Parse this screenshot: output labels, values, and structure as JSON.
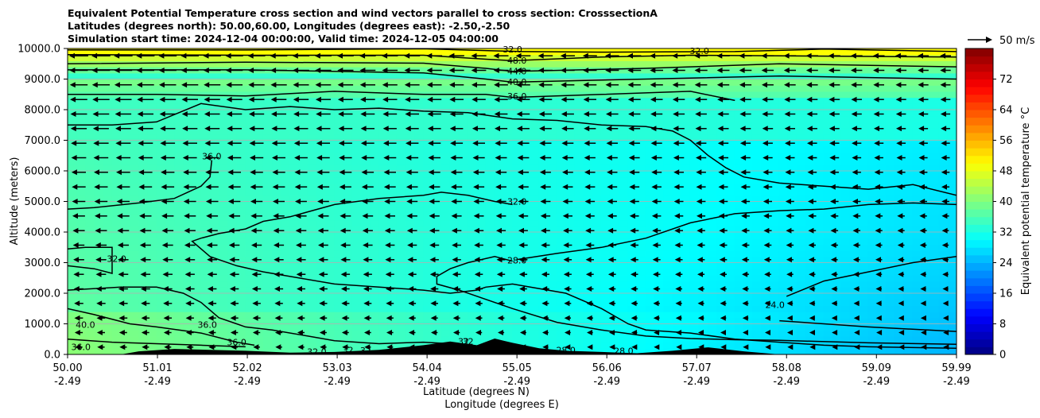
{
  "title_lines": [
    "Equivalent Potential Temperature cross section and wind vectors parallel to cross section: CrosssectionA",
    "Latitudes (degrees north): 50.00,60.00, Longitudes (degrees east): -2.50,-2.50",
    "Simulation start time: 2024-12-04 00:00:00, Valid time: 2024-12-05 04:00:00"
  ],
  "chart_data": {
    "type": "heatmap",
    "subtype": "cross-section filled contour with wind vectors",
    "xlabel": "Latitude (degrees N)",
    "xlabel2": "Longitude (degrees E)",
    "ylabel": "Altitude (meters)",
    "xlim": [
      50.0,
      59.99
    ],
    "ylim": [
      0,
      10000
    ],
    "x_ticks": [
      {
        "lat": "50.00",
        "lon": "-2.49",
        "value": 50.0
      },
      {
        "lat": "51.01",
        "lon": "-2.49",
        "value": 51.01
      },
      {
        "lat": "52.02",
        "lon": "-2.49",
        "value": 52.02
      },
      {
        "lat": "53.03",
        "lon": "-2.49",
        "value": 53.03
      },
      {
        "lat": "54.04",
        "lon": "-2.49",
        "value": 54.04
      },
      {
        "lat": "55.05",
        "lon": "-2.49",
        "value": 55.05
      },
      {
        "lat": "56.06",
        "lon": "-2.49",
        "value": 56.06
      },
      {
        "lat": "57.07",
        "lon": "-2.49",
        "value": 57.07
      },
      {
        "lat": "58.08",
        "lon": "-2.49",
        "value": 58.08
      },
      {
        "lat": "59.09",
        "lon": "-2.49",
        "value": 59.09
      },
      {
        "lat": "59.99",
        "lon": "-2.49",
        "value": 59.99
      }
    ],
    "y_ticks": [
      "0.0",
      "1000.0",
      "2000.0",
      "3000.0",
      "4000.0",
      "5000.0",
      "6000.0",
      "7000.0",
      "8000.0",
      "9000.0",
      "10000.0"
    ],
    "y_tick_values": [
      0,
      1000,
      2000,
      3000,
      4000,
      5000,
      6000,
      7000,
      8000,
      9000,
      10000
    ],
    "colorbar": {
      "label": "Equivalent potential temperature °C",
      "min": 0,
      "max": 80,
      "ticks": [
        "0",
        "8",
        "16",
        "24",
        "32",
        "40",
        "48",
        "56",
        "64",
        "72"
      ],
      "tick_values": [
        0,
        8,
        16,
        24,
        32,
        40,
        48,
        56,
        64,
        72
      ]
    },
    "quiver_key": {
      "label": "50 m/s",
      "value": 50
    },
    "contour_labels": [
      {
        "text": "32.0",
        "x": 55.0,
        "y": 9950
      },
      {
        "text": "48.0",
        "x": 55.05,
        "y": 9580
      },
      {
        "text": "44.0",
        "x": 55.05,
        "y": 9240
      },
      {
        "text": "40.0",
        "x": 55.05,
        "y": 8880
      },
      {
        "text": "36.0",
        "x": 55.05,
        "y": 8420
      },
      {
        "text": "32.0",
        "x": 57.1,
        "y": 9900
      },
      {
        "text": "36.0",
        "x": 51.62,
        "y": 6450
      },
      {
        "text": "32.0",
        "x": 55.05,
        "y": 4970
      },
      {
        "text": "28.0",
        "x": 55.05,
        "y": 3050
      },
      {
        "text": "32.0",
        "x": 50.55,
        "y": 3100
      },
      {
        "text": "40.0",
        "x": 50.2,
        "y": 950
      },
      {
        "text": "36.0",
        "x": 50.15,
        "y": 220
      },
      {
        "text": "36.0",
        "x": 51.57,
        "y": 950
      },
      {
        "text": "36.0",
        "x": 51.9,
        "y": 380
      },
      {
        "text": "32.0",
        "x": 52.8,
        "y": 60
      },
      {
        "text": "32",
        "x": 53.15,
        "y": 120
      },
      {
        "text": "32",
        "x": 53.35,
        "y": 110
      },
      {
        "text": "32",
        "x": 54.45,
        "y": 400
      },
      {
        "text": "32",
        "x": 54.5,
        "y": 400
      },
      {
        "text": "28.0",
        "x": 56.25,
        "y": 90
      },
      {
        "text": "28.0",
        "x": 55.6,
        "y": 120
      },
      {
        "text": "24.0",
        "x": 57.95,
        "y": 1600
      }
    ],
    "contours": [
      {
        "level": 32,
        "points": [
          [
            50.0,
            9950
          ],
          [
            52.0,
            9950
          ],
          [
            54.0,
            9990
          ],
          [
            55.1,
            9900
          ],
          [
            56.0,
            9880
          ],
          [
            57.5,
            9900
          ],
          [
            58.5,
            9980
          ],
          [
            59.99,
            9900
          ]
        ]
      },
      {
        "level": 48,
        "points": [
          [
            50.0,
            9800
          ],
          [
            52.0,
            9780
          ],
          [
            54.0,
            9780
          ],
          [
            54.7,
            9650
          ],
          [
            55.0,
            9600
          ],
          [
            56.0,
            9720
          ],
          [
            57.0,
            9780
          ],
          [
            58.5,
            9750
          ],
          [
            59.99,
            9720
          ]
        ]
      },
      {
        "level": 44,
        "points": [
          [
            50.0,
            9500
          ],
          [
            52.0,
            9550
          ],
          [
            54.0,
            9520
          ],
          [
            54.7,
            9350
          ],
          [
            55.0,
            9250
          ],
          [
            56.5,
            9350
          ],
          [
            58.0,
            9500
          ],
          [
            59.99,
            9400
          ]
        ]
      },
      {
        "level": 40,
        "points": [
          [
            50.0,
            9300
          ],
          [
            52.0,
            9300
          ],
          [
            54.0,
            9200
          ],
          [
            54.7,
            9000
          ],
          [
            55.0,
            8900
          ],
          [
            56.5,
            9000
          ],
          [
            58.0,
            9100
          ],
          [
            59.99,
            9000
          ]
        ]
      },
      {
        "level": 36,
        "points": [
          [
            50.0,
            8500
          ],
          [
            51.0,
            8500
          ],
          [
            52.0,
            8450
          ],
          [
            53.0,
            8600
          ],
          [
            54.0,
            8500
          ],
          [
            54.7,
            8500
          ],
          [
            55.0,
            8400
          ],
          [
            56.0,
            8500
          ],
          [
            57.0,
            8600
          ],
          [
            57.5,
            8300
          ]
        ]
      },
      {
        "level": 36,
        "points": [
          [
            50.0,
            7500
          ],
          [
            50.5,
            7500
          ],
          [
            51.0,
            7600
          ],
          [
            51.5,
            8200
          ],
          [
            52.0,
            8000
          ],
          [
            52.5,
            8100
          ],
          [
            53.0,
            8000
          ],
          [
            53.5,
            8050
          ],
          [
            54.0,
            7950
          ],
          [
            54.5,
            7900
          ],
          [
            55.0,
            7700
          ],
          [
            55.5,
            7650
          ],
          [
            56.0,
            7500
          ],
          [
            56.5,
            7450
          ],
          [
            56.8,
            7300
          ],
          [
            57.0,
            7000
          ],
          [
            57.2,
            6500
          ],
          [
            57.4,
            6100
          ],
          [
            57.6,
            5800
          ],
          [
            58.0,
            5600
          ],
          [
            58.5,
            5500
          ],
          [
            59.0,
            5400
          ],
          [
            59.5,
            5550
          ],
          [
            59.99,
            5200
          ]
        ]
      },
      {
        "level": 36,
        "points": [
          [
            51.62,
            6350
          ],
          [
            51.6,
            5800
          ],
          [
            51.5,
            5500
          ],
          [
            51.2,
            5100
          ],
          [
            50.8,
            4950
          ],
          [
            50.3,
            4800
          ],
          [
            50.0,
            4750
          ]
        ]
      },
      {
        "level": 32,
        "points": [
          [
            55.0,
            4900
          ],
          [
            54.8,
            5000
          ],
          [
            54.5,
            5200
          ],
          [
            54.2,
            5300
          ],
          [
            54.0,
            5200
          ],
          [
            53.5,
            5100
          ],
          [
            53.0,
            4900
          ],
          [
            52.5,
            4500
          ],
          [
            52.2,
            4350
          ],
          [
            52.0,
            4100
          ],
          [
            51.7,
            3950
          ],
          [
            51.5,
            3800
          ],
          [
            51.4,
            3700
          ],
          [
            51.6,
            3200
          ],
          [
            51.9,
            2900
          ],
          [
            52.2,
            2700
          ],
          [
            52.6,
            2500
          ],
          [
            53.0,
            2300
          ],
          [
            53.5,
            2200
          ],
          [
            54.0,
            2100
          ],
          [
            54.3,
            2000
          ],
          [
            54.6,
            2100
          ],
          [
            54.7,
            2200
          ],
          [
            55.0,
            2300
          ],
          [
            55.6,
            2000
          ],
          [
            56.0,
            1500
          ],
          [
            56.3,
            1000
          ],
          [
            56.5,
            800
          ],
          [
            57.0,
            700
          ],
          [
            57.5,
            500
          ],
          [
            58.0,
            400
          ],
          [
            58.5,
            300
          ],
          [
            59.0,
            250
          ],
          [
            59.99,
            200
          ]
        ]
      },
      {
        "level": 28,
        "points": [
          [
            55.0,
            3050
          ],
          [
            54.8,
            3200
          ],
          [
            54.5,
            3000
          ],
          [
            54.3,
            2800
          ],
          [
            54.15,
            2550
          ],
          [
            54.15,
            2300
          ],
          [
            54.4,
            2100
          ],
          [
            55.0,
            1500
          ],
          [
            55.5,
            1050
          ],
          [
            56.0,
            800
          ],
          [
            56.5,
            600
          ],
          [
            57.0,
            520
          ],
          [
            57.5,
            480
          ],
          [
            58.0,
            460
          ],
          [
            59.0,
            380
          ],
          [
            59.99,
            330
          ]
        ]
      },
      {
        "level": 28,
        "points": [
          [
            55.05,
            3100
          ],
          [
            55.5,
            3300
          ],
          [
            56.0,
            3500
          ],
          [
            56.5,
            3800
          ],
          [
            57.0,
            4300
          ],
          [
            57.5,
            4600
          ],
          [
            58.0,
            4700
          ],
          [
            58.5,
            4750
          ],
          [
            59.0,
            4900
          ],
          [
            59.5,
            4950
          ],
          [
            59.99,
            4900
          ]
        ]
      },
      {
        "level": 24,
        "points": [
          [
            58.08,
            1900
          ],
          [
            58.5,
            2400
          ],
          [
            59.0,
            2700
          ],
          [
            59.5,
            3000
          ],
          [
            59.99,
            3200
          ]
        ]
      },
      {
        "level": 24,
        "points": [
          [
            58.0,
            1100
          ],
          [
            58.5,
            1000
          ],
          [
            59.0,
            900
          ],
          [
            59.99,
            750
          ]
        ]
      },
      {
        "level": 32,
        "points": [
          [
            50.0,
            2900
          ],
          [
            50.3,
            2800
          ],
          [
            50.5,
            2650
          ],
          [
            50.5,
            3500
          ],
          [
            50.2,
            3500
          ],
          [
            50.0,
            3450
          ]
        ]
      },
      {
        "level": 36,
        "points": [
          [
            50.0,
            2100
          ],
          [
            50.6,
            2200
          ],
          [
            51.0,
            2200
          ],
          [
            51.3,
            2000
          ],
          [
            51.5,
            1700
          ],
          [
            51.7,
            1200
          ],
          [
            51.9,
            1000
          ],
          [
            52.0,
            900
          ],
          [
            52.3,
            800
          ],
          [
            52.7,
            600
          ],
          [
            53.0,
            450
          ],
          [
            53.5,
            350
          ],
          [
            54.0,
            400
          ],
          [
            54.3,
            350
          ]
        ]
      },
      {
        "level": 40,
        "points": [
          [
            50.0,
            1500
          ],
          [
            50.3,
            1300
          ],
          [
            50.7,
            1000
          ],
          [
            51.0,
            900
          ],
          [
            51.5,
            700
          ],
          [
            51.9,
            400
          ],
          [
            52.1,
            300
          ]
        ]
      },
      {
        "level": 36,
        "points": [
          [
            50.0,
            500
          ],
          [
            50.5,
            400
          ],
          [
            51.0,
            350
          ],
          [
            51.5,
            300
          ],
          [
            52.0,
            250
          ]
        ]
      }
    ],
    "terrain": [
      [
        50.0,
        0
      ],
      [
        50.6,
        0
      ],
      [
        50.8,
        100
      ],
      [
        51.2,
        180
      ],
      [
        51.6,
        150
      ],
      [
        52.0,
        120
      ],
      [
        52.5,
        60
      ],
      [
        53.0,
        80
      ],
      [
        53.5,
        150
      ],
      [
        54.0,
        300
      ],
      [
        54.3,
        420
      ],
      [
        54.6,
        300
      ],
      [
        54.8,
        520
      ],
      [
        55.0,
        380
      ],
      [
        55.3,
        200
      ],
      [
        55.6,
        120
      ],
      [
        56.0,
        80
      ],
      [
        56.4,
        40
      ],
      [
        56.8,
        120
      ],
      [
        57.2,
        230
      ],
      [
        57.6,
        100
      ],
      [
        58.0,
        0
      ],
      [
        59.99,
        0
      ]
    ],
    "wind_vectors": {
      "description": "Wind component parallel to cross section, mostly pointing toward lower latitude (leftward), stronger aloft",
      "columns": 40,
      "rows": 21,
      "u_upper_ms": -40,
      "u_lower_ms": -15
    }
  }
}
